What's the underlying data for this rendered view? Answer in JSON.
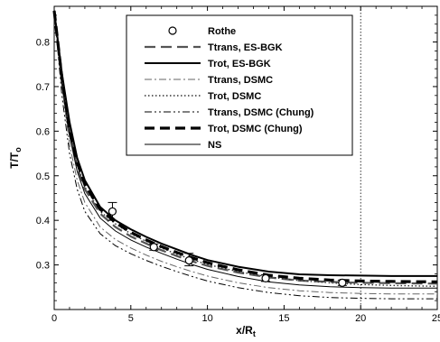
{
  "chart_data": {
    "type": "line",
    "xlabel": "x/R",
    "xlabel_sub": "t",
    "ylabel": "T/T",
    "ylabel_sub": "o",
    "xlim": [
      0,
      25
    ],
    "ylim": [
      0.2,
      0.88
    ],
    "x_ticks": [
      0,
      5,
      10,
      15,
      20,
      25
    ],
    "x_tick_labels": [
      "0",
      "5",
      "10",
      "15",
      "20",
      "25"
    ],
    "y_ticks": [
      0.3,
      0.4,
      0.5,
      0.6,
      0.7,
      0.8
    ],
    "y_tick_labels": [
      "0.3",
      "0.4",
      "0.5",
      "0.6",
      "0.7",
      "0.8"
    ],
    "grid": false,
    "legend_position": "top-right",
    "vertical_reference_line": {
      "x": 20,
      "style": "dotted"
    },
    "series": [
      {
        "name": "Ttrans, ES-BGK",
        "style": "long-dash",
        "color": "#555555",
        "x": [
          0,
          0.5,
          1,
          1.5,
          2,
          3,
          4,
          5,
          6,
          7,
          8,
          9,
          10,
          12,
          14,
          16,
          18,
          20,
          22,
          25
        ],
        "y": [
          0.87,
          0.72,
          0.6,
          0.52,
          0.47,
          0.415,
          0.385,
          0.364,
          0.348,
          0.333,
          0.32,
          0.308,
          0.298,
          0.283,
          0.272,
          0.265,
          0.262,
          0.26,
          0.259,
          0.258
        ]
      },
      {
        "name": "Trot, ES-BGK",
        "style": "solid-bold",
        "color": "#000000",
        "x": [
          0,
          0.5,
          1,
          1.5,
          2,
          3,
          4,
          5,
          6,
          7,
          8,
          9,
          10,
          12,
          14,
          16,
          18,
          20,
          22,
          25
        ],
        "y": [
          0.87,
          0.73,
          0.62,
          0.54,
          0.49,
          0.43,
          0.4,
          0.38,
          0.363,
          0.348,
          0.335,
          0.322,
          0.311,
          0.296,
          0.285,
          0.279,
          0.277,
          0.276,
          0.275,
          0.275
        ]
      },
      {
        "name": "Ttrans, DSMC",
        "style": "dash-dot",
        "color": "#666666",
        "x": [
          0,
          0.5,
          1,
          1.5,
          2,
          3,
          4,
          5,
          6,
          7,
          8,
          9,
          10,
          12,
          14,
          16,
          18,
          20,
          22,
          25
        ],
        "y": [
          0.87,
          0.7,
          0.57,
          0.49,
          0.44,
          0.385,
          0.357,
          0.338,
          0.322,
          0.308,
          0.296,
          0.285,
          0.275,
          0.26,
          0.249,
          0.242,
          0.238,
          0.236,
          0.235,
          0.235
        ]
      },
      {
        "name": "Trot, DSMC",
        "style": "dotted",
        "color": "#333333",
        "x": [
          0,
          0.5,
          1,
          1.5,
          2,
          3,
          4,
          5,
          6,
          7,
          8,
          9,
          10,
          12,
          14,
          16,
          18,
          20,
          22,
          25
        ],
        "y": [
          0.87,
          0.72,
          0.6,
          0.525,
          0.475,
          0.42,
          0.392,
          0.37,
          0.353,
          0.338,
          0.324,
          0.312,
          0.301,
          0.285,
          0.273,
          0.265,
          0.26,
          0.256,
          0.254,
          0.252
        ]
      },
      {
        "name": "Ttrans, DSMC (Chung)",
        "style": "dash-dot-dot",
        "color": "#000000",
        "x": [
          0,
          0.5,
          1,
          1.5,
          2,
          3,
          4,
          5,
          6,
          7,
          8,
          9,
          10,
          12,
          14,
          16,
          18,
          20,
          22,
          25
        ],
        "y": [
          0.87,
          0.68,
          0.55,
          0.47,
          0.42,
          0.37,
          0.343,
          0.325,
          0.31,
          0.297,
          0.285,
          0.274,
          0.264,
          0.249,
          0.238,
          0.231,
          0.227,
          0.225,
          0.224,
          0.224
        ]
      },
      {
        "name": "Trot, DSMC (Chung)",
        "style": "bold-dash",
        "color": "#000000",
        "x": [
          0,
          0.5,
          1,
          1.5,
          2,
          3,
          4,
          5,
          6,
          7,
          8,
          9,
          10,
          12,
          14,
          16,
          18,
          20,
          22,
          25
        ],
        "y": [
          0.87,
          0.72,
          0.6,
          0.53,
          0.48,
          0.425,
          0.395,
          0.373,
          0.356,
          0.341,
          0.328,
          0.316,
          0.305,
          0.289,
          0.277,
          0.27,
          0.266,
          0.264,
          0.263,
          0.262
        ]
      },
      {
        "name": "NS",
        "style": "solid-thin",
        "color": "#000000",
        "x": [
          0,
          0.5,
          1,
          1.5,
          2,
          3,
          4,
          5,
          6,
          7,
          8,
          9,
          10,
          12,
          14,
          16,
          18,
          20,
          22,
          25
        ],
        "y": [
          0.87,
          0.71,
          0.59,
          0.51,
          0.46,
          0.405,
          0.376,
          0.356,
          0.34,
          0.326,
          0.313,
          0.301,
          0.29,
          0.274,
          0.262,
          0.255,
          0.251,
          0.249,
          0.248,
          0.248
        ]
      }
    ],
    "markers": {
      "name": "Rothe",
      "symbol": "open-circle",
      "points": [
        {
          "x": 3.8,
          "y": 0.42,
          "err_low": 0.4,
          "err_high": 0.44
        },
        {
          "x": 6.5,
          "y": 0.34,
          "err_low": 0.333,
          "err_high": 0.347
        },
        {
          "x": 8.8,
          "y": 0.31,
          "err_low": 0.298,
          "err_high": 0.326
        },
        {
          "x": 13.8,
          "y": 0.27,
          "err_low": 0.263,
          "err_high": 0.278
        },
        {
          "x": 18.8,
          "y": 0.26,
          "err_low": 0.254,
          "err_high": 0.266
        }
      ]
    }
  }
}
